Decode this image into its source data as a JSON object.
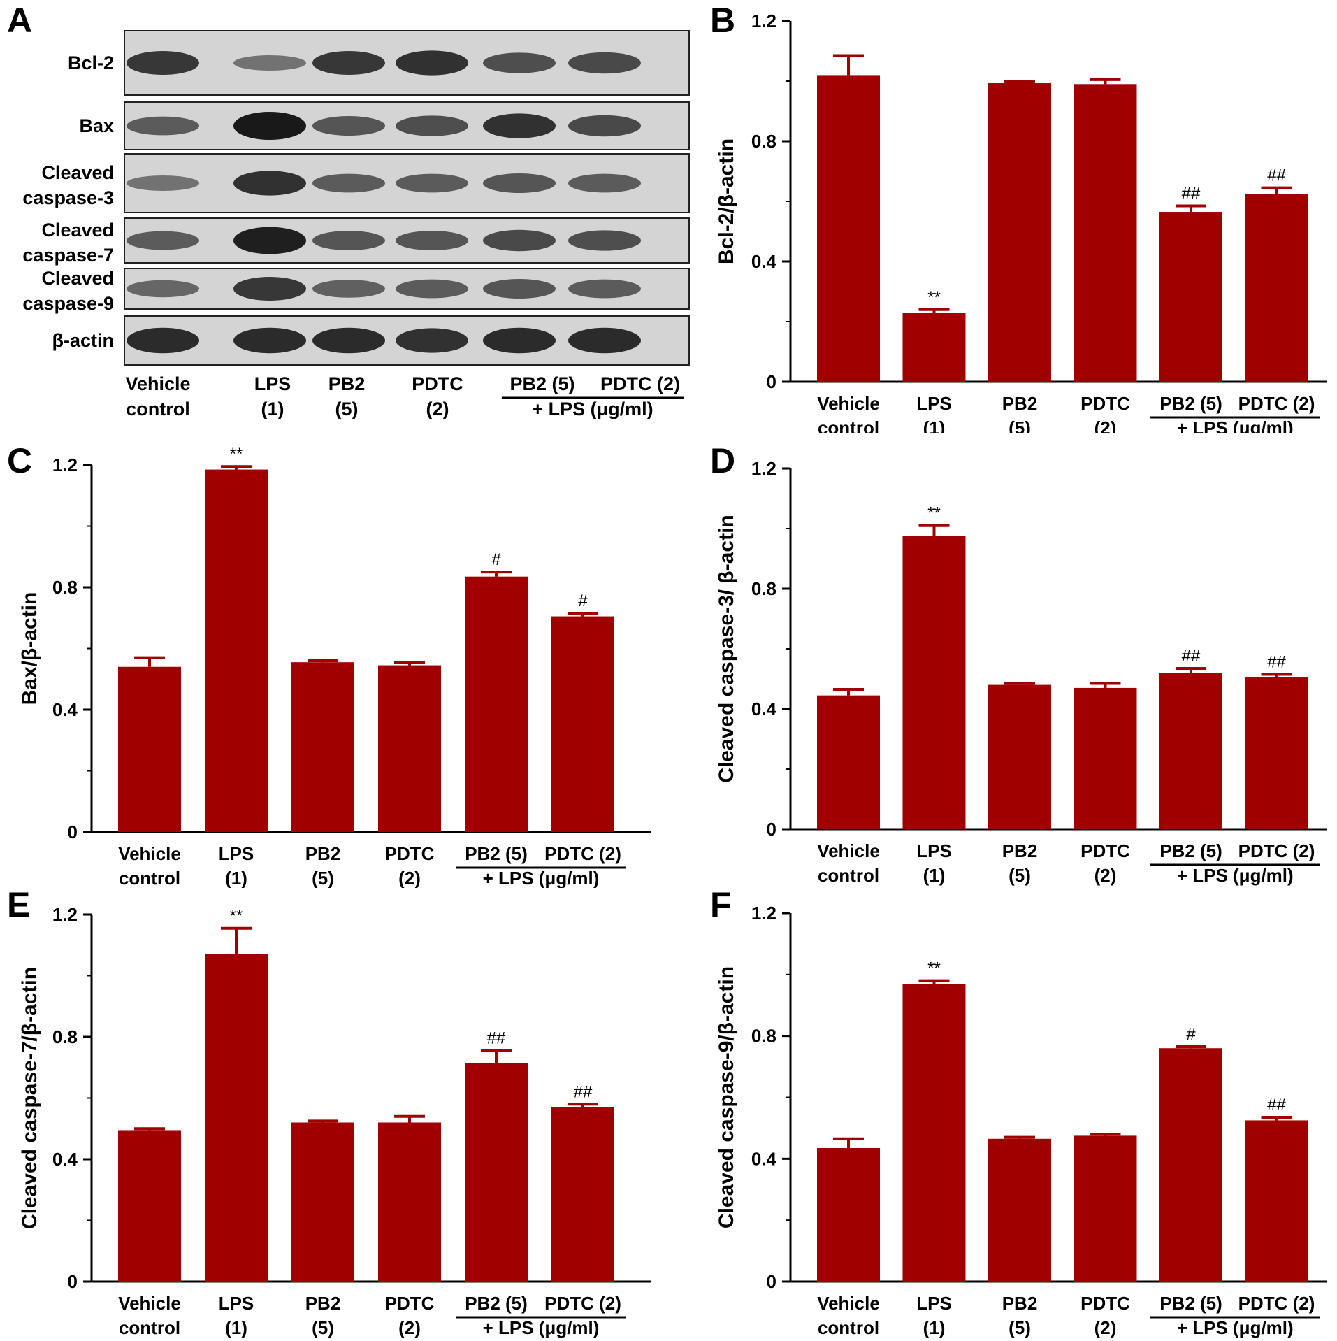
{
  "panels": [
    "A",
    "B",
    "C",
    "D",
    "E",
    "F"
  ],
  "groups": [
    "Vehicle control",
    "LPS (1)",
    "PB2 (5)",
    "PDTC (2)",
    "PB2 (5)",
    "PDTC (2)"
  ],
  "group_label_lines": [
    [
      "Vehicle",
      "control"
    ],
    [
      "LPS",
      "(1)"
    ],
    [
      "PB2",
      "(5)"
    ],
    [
      "PDTC",
      "(2)"
    ],
    [
      "PB2 (5)",
      ""
    ],
    [
      "PDTC (2)",
      ""
    ]
  ],
  "combo_label": "+ LPS (μg/ml)",
  "colors": {
    "bar": "#a00000",
    "axis": "#000000"
  },
  "blot": {
    "rows": [
      {
        "label": [
          "Bcl-2"
        ],
        "intensity": [
          0.75,
          0.25,
          0.75,
          0.8,
          0.55,
          0.6
        ]
      },
      {
        "label": [
          "Bax"
        ],
        "intensity": [
          0.45,
          1.0,
          0.5,
          0.55,
          0.8,
          0.6
        ]
      },
      {
        "label": [
          "Cleaved",
          "caspase-3"
        ],
        "intensity": [
          0.25,
          0.8,
          0.45,
          0.45,
          0.5,
          0.45
        ]
      },
      {
        "label": [
          "Cleaved",
          "caspase-7"
        ],
        "intensity": [
          0.45,
          0.95,
          0.5,
          0.5,
          0.6,
          0.55
        ]
      },
      {
        "label": [
          "Cleaved",
          "caspase-9"
        ],
        "intensity": [
          0.35,
          0.75,
          0.4,
          0.45,
          0.5,
          0.45
        ]
      },
      {
        "label": [
          "β-actin"
        ],
        "intensity": [
          0.85,
          0.85,
          0.85,
          0.8,
          0.85,
          0.85
        ]
      }
    ]
  },
  "chart_data": [
    {
      "panel": "B",
      "type": "bar",
      "ylabel": "Bcl-2/β-actin",
      "ylim": [
        0,
        1.2
      ],
      "yticks": [
        "0",
        "0.4",
        "0.8",
        "1.2"
      ],
      "categories": [
        "Vehicle control",
        "LPS (1)",
        "PB2 (5)",
        "PDTC (2)",
        "PB2 (5) + LPS",
        "PDTC (2) + LPS"
      ],
      "values": [
        1.02,
        0.23,
        0.995,
        0.99,
        0.565,
        0.625
      ],
      "errors": [
        0.065,
        0.01,
        0.005,
        0.015,
        0.02,
        0.02
      ],
      "annotations": [
        "",
        "**",
        "",
        "",
        "##",
        "##"
      ]
    },
    {
      "panel": "C",
      "type": "bar",
      "ylabel": "Bax/β-actin",
      "ylim": [
        0,
        1.2
      ],
      "yticks": [
        "0",
        "0.4",
        "0.8",
        "1.2"
      ],
      "categories": [
        "Vehicle control",
        "LPS (1)",
        "PB2 (5)",
        "PDTC (2)",
        "PB2 (5) + LPS",
        "PDTC (2) + LPS"
      ],
      "values": [
        0.54,
        1.185,
        0.555,
        0.545,
        0.835,
        0.705
      ],
      "errors": [
        0.03,
        0.01,
        0.005,
        0.01,
        0.015,
        0.01
      ],
      "annotations": [
        "",
        "**",
        "",
        "",
        "#",
        "#"
      ]
    },
    {
      "panel": "D",
      "type": "bar",
      "ylabel": "Cleaved caspase-3/ β-actin",
      "ylim": [
        0,
        1.2
      ],
      "yticks": [
        "0",
        "0.4",
        "0.8",
        "1.2"
      ],
      "categories": [
        "Vehicle control",
        "LPS (1)",
        "PB2 (5)",
        "PDTC (2)",
        "PB2 (5) + LPS",
        "PDTC (2) + LPS"
      ],
      "values": [
        0.445,
        0.975,
        0.48,
        0.47,
        0.52,
        0.505
      ],
      "errors": [
        0.02,
        0.035,
        0.005,
        0.015,
        0.015,
        0.01
      ],
      "annotations": [
        "",
        "**",
        "",
        "",
        "##",
        "##"
      ]
    },
    {
      "panel": "E",
      "type": "bar",
      "ylabel": "Cleaved caspase-7/β-actin",
      "ylim": [
        0,
        1.2
      ],
      "yticks": [
        "0",
        "0.4",
        "0.8",
        "1.2"
      ],
      "categories": [
        "Vehicle control",
        "LPS (1)",
        "PB2 (5)",
        "PDTC (2)",
        "PB2 (5) + LPS",
        "PDTC (2) + LPS"
      ],
      "values": [
        0.495,
        1.07,
        0.52,
        0.52,
        0.715,
        0.57
      ],
      "errors": [
        0.005,
        0.085,
        0.005,
        0.02,
        0.04,
        0.01
      ],
      "annotations": [
        "",
        "**",
        "",
        "",
        "##",
        "##"
      ]
    },
    {
      "panel": "F",
      "type": "bar",
      "ylabel": "Cleaved caspase-9/β-actin",
      "ylim": [
        0,
        1.2
      ],
      "yticks": [
        "0",
        "0.4",
        "0.8",
        "1.2"
      ],
      "categories": [
        "Vehicle control",
        "LPS (1)",
        "PB2 (5)",
        "PDTC (2)",
        "PB2 (5) + LPS",
        "PDTC (2) + LPS"
      ],
      "values": [
        0.435,
        0.97,
        0.465,
        0.475,
        0.76,
        0.525
      ],
      "errors": [
        0.03,
        0.01,
        0.005,
        0.005,
        0.005,
        0.01
      ],
      "annotations": [
        "",
        "**",
        "",
        "",
        "#",
        "##"
      ]
    }
  ]
}
